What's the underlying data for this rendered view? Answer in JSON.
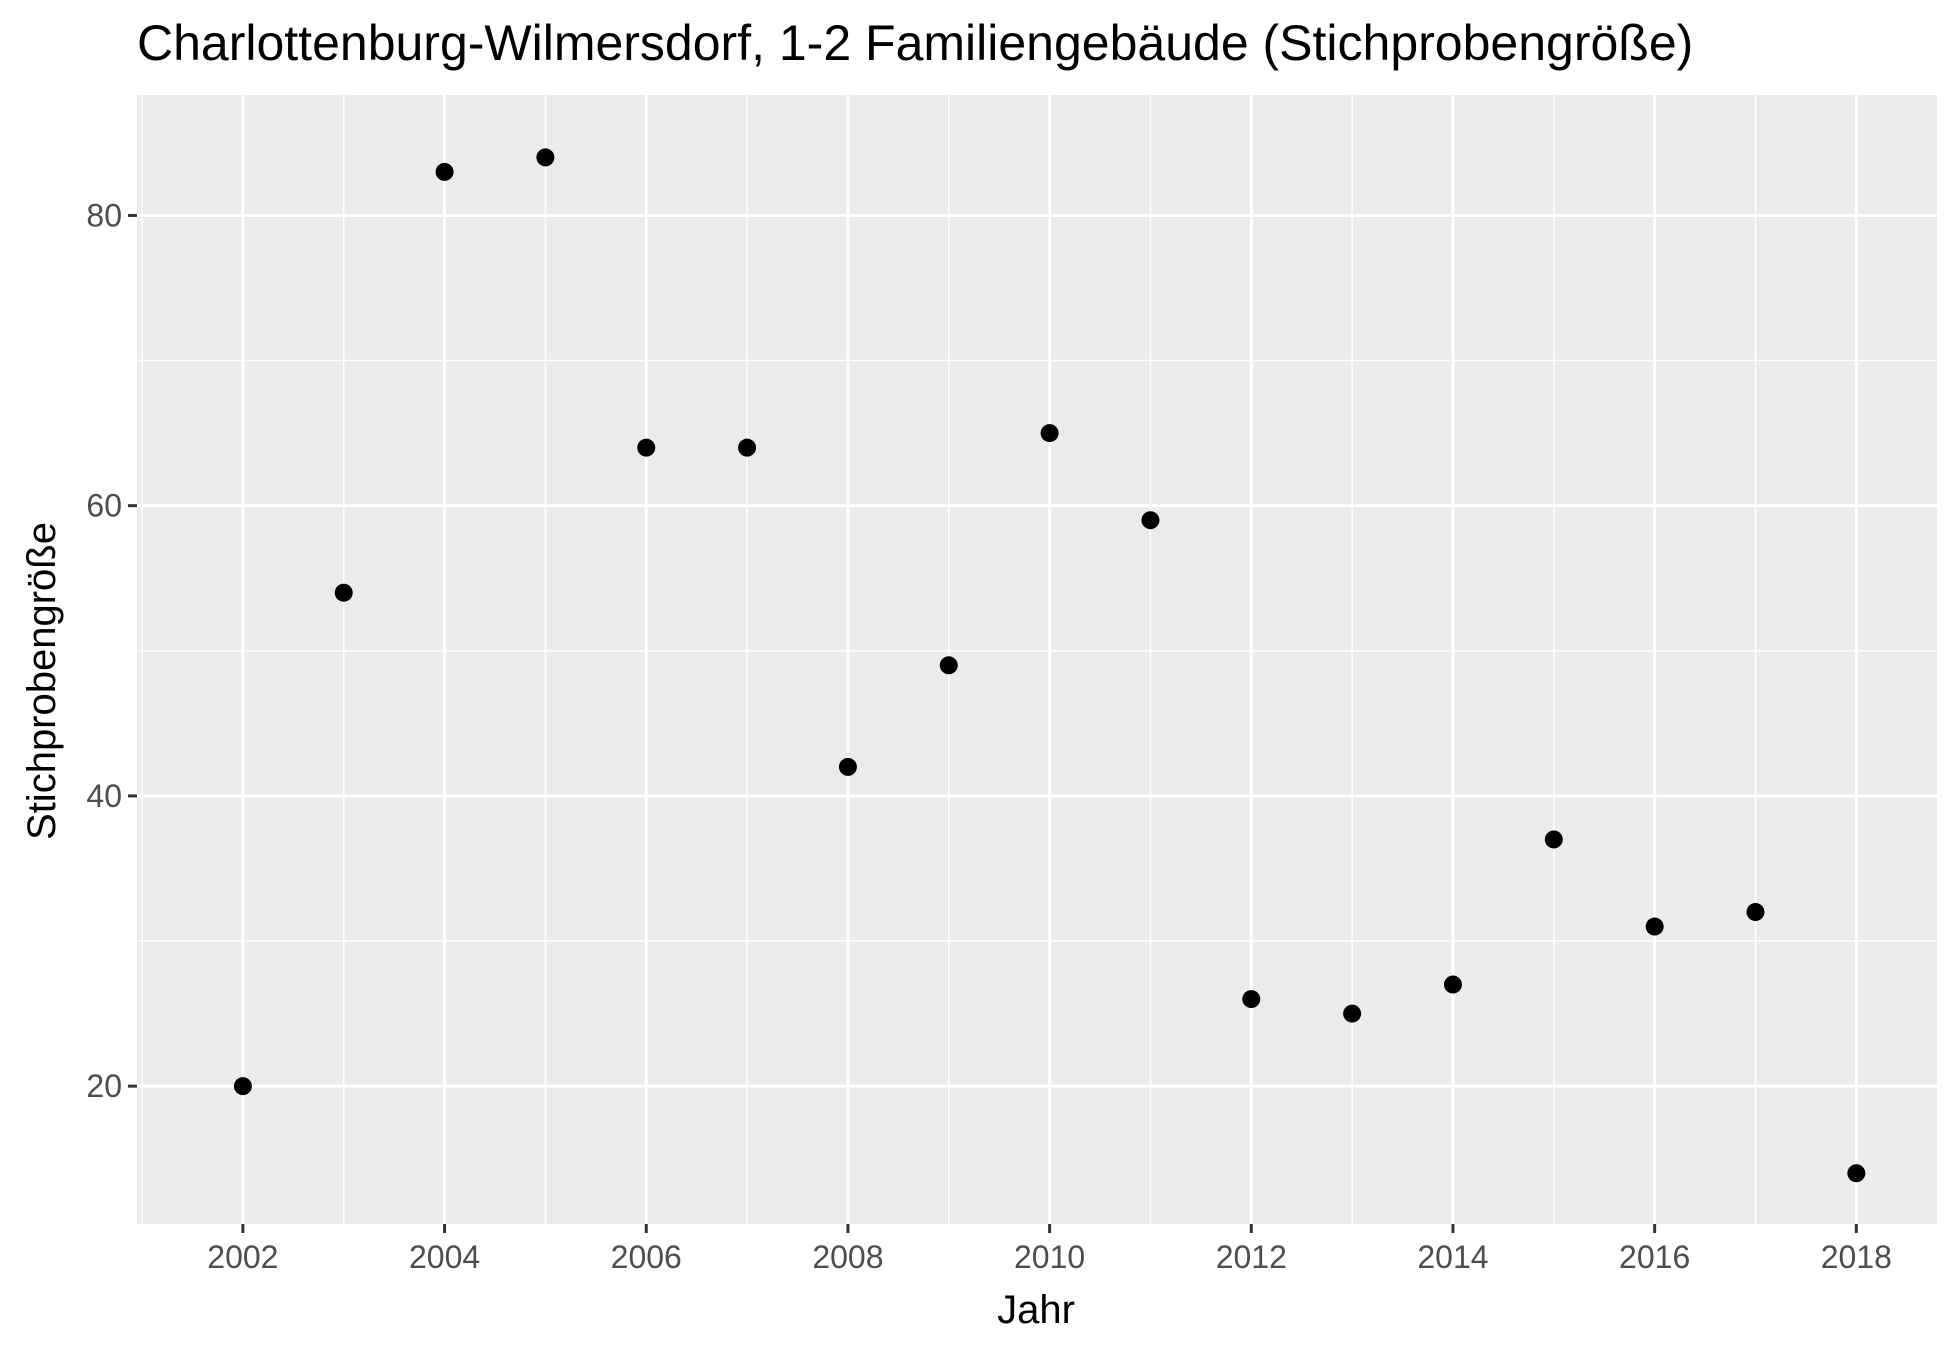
{
  "chart_data": {
    "type": "scatter",
    "title": "Charlottenburg-Wilmersdorf, 1-2 Familiengebäude (Stichprobengröße)",
    "xlabel": "Jahr",
    "ylabel": "Stichprobengröße",
    "x": [
      2002,
      2003,
      2004,
      2005,
      2006,
      2007,
      2008,
      2009,
      2010,
      2011,
      2012,
      2013,
      2014,
      2015,
      2016,
      2017,
      2018
    ],
    "y": [
      20,
      54,
      83,
      84,
      64,
      64,
      42,
      49,
      65,
      59,
      26,
      25,
      27,
      37,
      31,
      32,
      14
    ],
    "xlim": [
      2000.95,
      2018.8
    ],
    "ylim": [
      10.5,
      88.3
    ],
    "xticks": [
      2002,
      2004,
      2006,
      2008,
      2010,
      2012,
      2014,
      2016,
      2018
    ],
    "xtick_labels": [
      "2002",
      "2004",
      "2006",
      "2008",
      "2010",
      "2012",
      "2014",
      "2016",
      "2018"
    ],
    "yticks": [
      20,
      40,
      60,
      80
    ],
    "ytick_labels": [
      "20",
      "40",
      "60",
      "80"
    ],
    "grid": true,
    "legend": "none",
    "colors": {
      "panel": "#ebebeb",
      "grid": "#ffffff",
      "point": "#000000",
      "tick": "#333333"
    }
  }
}
